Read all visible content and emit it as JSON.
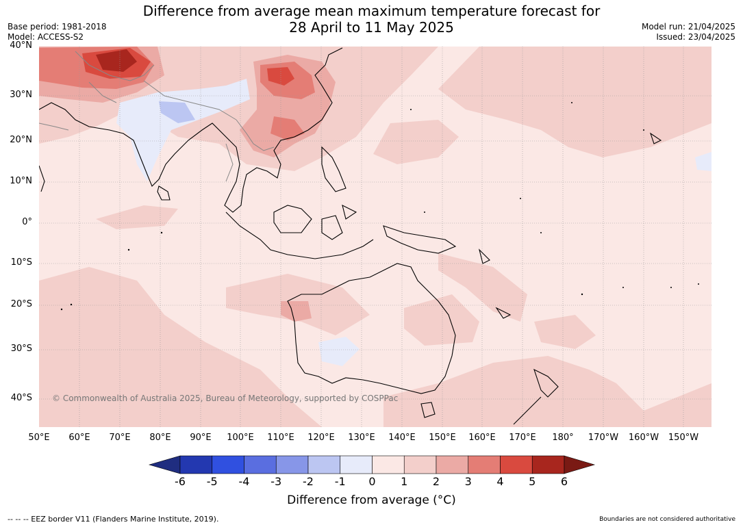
{
  "title": {
    "line1": "Difference from average mean maximum temperature forecast for",
    "line2": "28 April to 11 May 2025"
  },
  "meta_left": {
    "base_period": "Base period: 1981-2018",
    "model": "Model: ACCESS-S2"
  },
  "meta_right": {
    "model_run": "Model run: 21/04/2025",
    "issued": "Issued: 23/04/2025"
  },
  "map": {
    "lat_labels": [
      "40°N",
      "30°N",
      "20°N",
      "10°N",
      "0°",
      "10°S",
      "20°S",
      "30°S",
      "40°S"
    ],
    "lon_labels": [
      "50°E",
      "60°E",
      "70°E",
      "80°E",
      "90°E",
      "100°E",
      "110°E",
      "120°E",
      "130°E",
      "140°E",
      "150°E",
      "160°E",
      "170°E",
      "180°",
      "170°W",
      "160°W",
      "150°W"
    ],
    "copyright": "© Commonwealth of Australia 2025, Bureau of Meteorology, supported by COSPPac",
    "background_color": "#fbe8e5"
  },
  "colorbar": {
    "ticks": [
      "-6",
      "-5",
      "-4",
      "-3",
      "-2",
      "-1",
      "0",
      "1",
      "2",
      "3",
      "4",
      "5",
      "6"
    ],
    "colors": [
      "#1f2d80",
      "#2338b0",
      "#3050e0",
      "#5a6ee0",
      "#8796e8",
      "#bcc6f2",
      "#e7ebfa",
      "#fbe8e5",
      "#f3cfcb",
      "#ebaaa5",
      "#e47d75",
      "#d94a3f",
      "#a8261e",
      "#7a1a14"
    ],
    "label": "Difference from average (°C)"
  },
  "footer": {
    "left": "--  --  -- EEZ border V11 (Flanders Marine Institute, 2019).",
    "right": "Boundaries are not considered authoritative"
  }
}
